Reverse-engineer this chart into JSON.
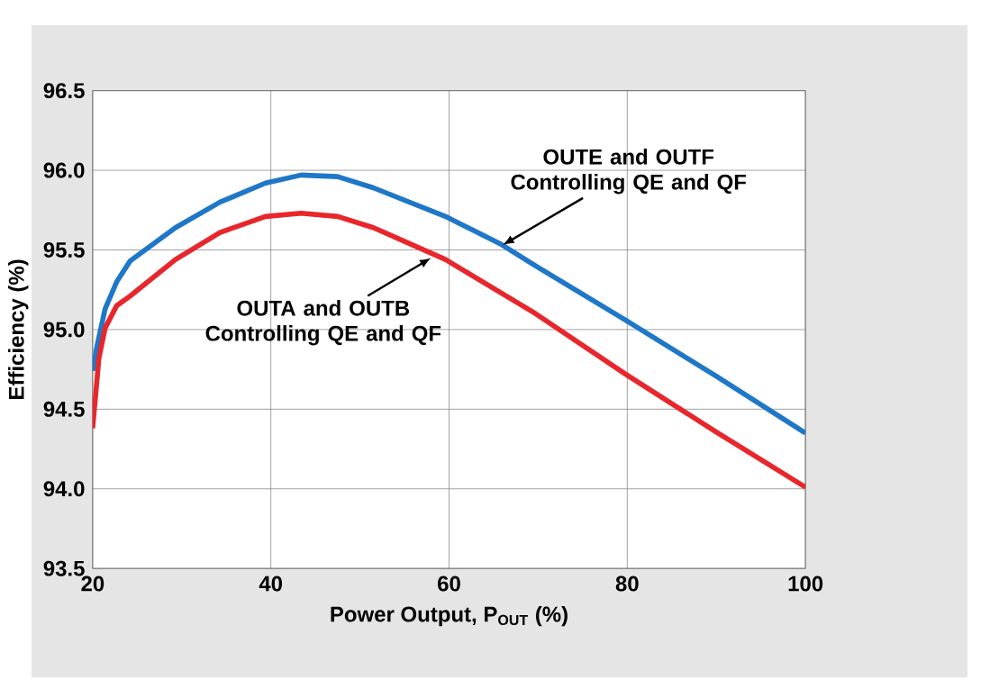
{
  "chart_data": {
    "type": "line",
    "xlabel": "Power Output, P$_{OUT}$ (%)",
    "ylabel": "Efficiency (%)",
    "xlim": [
      20,
      100
    ],
    "xticks": [
      20,
      40,
      60,
      80,
      100
    ],
    "ylim": [
      93.5,
      96.5
    ],
    "yticks": [
      {
        "value": 93.5,
        "label": "93.5"
      },
      {
        "value": 94.0,
        "label": "94.0"
      },
      {
        "value": 94.5,
        "label": "94.5"
      },
      {
        "value": 95.0,
        "label": "95.0"
      },
      {
        "value": 95.5,
        "label": "95.5"
      },
      {
        "value": 96.0,
        "label": "96.0"
      },
      {
        "value": 96.5,
        "label": "96.5"
      }
    ],
    "grid": true,
    "line_style": "solid",
    "series": [
      {
        "color": "#1f77c8",
        "x": [
          20,
          20.5,
          21.4,
          22.7,
          24.2,
          29.3,
          34.3,
          39.4,
          43.4,
          47.5,
          51.5,
          59.6,
          65.7,
          69.7,
          79.8,
          89.9,
          100
        ],
        "values": [
          94.74,
          94.9,
          95.13,
          95.3,
          95.43,
          95.64,
          95.8,
          95.92,
          95.97,
          95.96,
          95.89,
          95.71,
          95.54,
          95.4,
          95.06,
          94.71,
          94.35
        ]
      },
      {
        "color": "#e8262b",
        "x": [
          20,
          20.7,
          21.4,
          22.7,
          24.2,
          29.3,
          34.3,
          39.4,
          43.4,
          47.5,
          51.5,
          59.6,
          69.7,
          79.8,
          89.9,
          100
        ],
        "values": [
          94.38,
          94.82,
          95.01,
          95.15,
          95.21,
          95.44,
          95.61,
          95.71,
          95.73,
          95.71,
          95.64,
          95.44,
          95.1,
          94.72,
          94.36,
          94.01
        ]
      }
    ],
    "annotations": [
      {
        "text": "OUTE and OUTF Controlling QE and QF",
        "x": 66,
        "y": 95.53
      },
      {
        "text": "OUTA and OUTB Controlling QE and QF",
        "x": 58,
        "y": 95.45
      }
    ]
  }
}
